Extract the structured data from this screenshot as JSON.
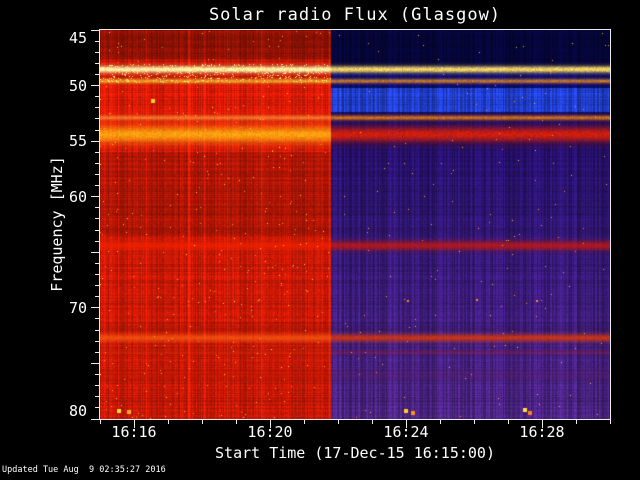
{
  "figure": {
    "background": "#000000",
    "footer_text": "Updated Tue Aug  9 02:35:27 2016"
  },
  "chart_data": {
    "type": "heatmap",
    "subtype": "radio-spectrogram",
    "title": "Solar radio Flux (Glasgow)",
    "xlabel": "Start Time (17-Dec-15 16:15:00)",
    "ylabel": "Frequency [MHz]",
    "x_start_time": "16:15:00",
    "x_span_minutes": 15,
    "x_minor_step_minutes": 1,
    "x_major_ticks": [
      {
        "minute": 1,
        "label": "16:16"
      },
      {
        "minute": 5,
        "label": "16:20"
      },
      {
        "minute": 9,
        "label": "16:24"
      },
      {
        "minute": 13,
        "label": "16:28"
      }
    ],
    "y_range_mhz": [
      45,
      80
    ],
    "y_inverted_low_at_top": true,
    "y_minor_step_mhz": 1,
    "y_major_ticks": [
      45,
      50,
      55,
      60,
      65,
      70,
      75,
      80
    ],
    "y_labeled_ticks": [
      45,
      50,
      55,
      60,
      70,
      80
    ],
    "transition_minute": 6.8,
    "left_region": {
      "base_color": "#d21a06",
      "top_dark_below_mhz": 47.6,
      "top_dark_factor": 0.72,
      "dim_from_mhz": 56.0,
      "dim_to_mhz": 63.5,
      "dim_factor": 0.88,
      "bright_from_mhz": 49.9,
      "bright_to_mhz": 56.0,
      "bright_factor": 1.1
    },
    "right_region": {
      "segments": [
        {
          "to_mhz": 48.2,
          "color": "#06063e"
        },
        {
          "to_mhz": 50.2,
          "color": "#0c0c72"
        },
        {
          "to_mhz": 52.4,
          "color": "#2343dc"
        },
        {
          "to_mhz": 55.4,
          "color": "#150b66"
        },
        {
          "to_mhz": 80,
          "color_top": "#271172",
          "color_bottom": "#53278e"
        }
      ]
    },
    "bands": [
      {
        "freq_mhz": 48.55,
        "sigma_mhz": 0.22,
        "peak": 1.0,
        "color_left": "#ffffb4",
        "color_right": "#ffe060"
      },
      {
        "freq_mhz": 49.6,
        "sigma_mhz": 0.15,
        "peak": 0.75,
        "color_left": "#ffcc30",
        "color_right": "#ff9820"
      },
      {
        "freq_mhz": 52.9,
        "sigma_mhz": 0.16,
        "peak": 0.8,
        "color_left": "#ff8a30",
        "color_right": "#ff8810"
      },
      {
        "freq_mhz": 54.4,
        "sigma_mhz": 0.5,
        "peak": 0.95,
        "color_left": "#ffac10",
        "color_right": "#e02008"
      },
      {
        "freq_mhz": 64.4,
        "sigma_mhz": 0.3,
        "peak": 0.8,
        "color_left": "#f02000",
        "color_right": "#cc1808"
      },
      {
        "freq_mhz": 72.7,
        "sigma_mhz": 0.25,
        "peak": 0.85,
        "color_left": "#f65410",
        "color_right": "#dd3808"
      },
      {
        "freq_mhz": 74.0,
        "sigma_mhz": 0.15,
        "peak": 0.45,
        "color_left": "#c82400",
        "color_right": "#8c1a40"
      },
      {
        "freq_mhz": 76.0,
        "sigma_mhz": 0.3,
        "peak": 0.35,
        "color_left": "#b81400",
        "color_right": "#581a60"
      }
    ],
    "spots": [
      {
        "t_minute": 1.55,
        "freq_mhz": 51.4,
        "r": 2,
        "color": "#ffd020"
      },
      {
        "t_minute": 0.55,
        "freq_mhz": 79.3,
        "r": 2,
        "color": "#ffe030"
      },
      {
        "t_minute": 0.85,
        "freq_mhz": 79.4,
        "r": 2,
        "color": "#ffb020"
      },
      {
        "t_minute": 9.0,
        "freq_mhz": 79.3,
        "r": 2,
        "color": "#ffd020"
      },
      {
        "t_minute": 9.2,
        "freq_mhz": 79.5,
        "r": 2,
        "color": "#ff9020"
      },
      {
        "t_minute": 12.5,
        "freq_mhz": 79.2,
        "r": 2,
        "color": "#ffe040"
      },
      {
        "t_minute": 12.65,
        "freq_mhz": 79.45,
        "r": 2,
        "color": "#ff8020"
      },
      {
        "t_minute": 9.05,
        "freq_mhz": 69.4,
        "r": 1,
        "color": "#ff8c20"
      },
      {
        "t_minute": 11.1,
        "freq_mhz": 69.3,
        "r": 1,
        "color": "#ff8c20"
      },
      {
        "t_minute": 12.85,
        "freq_mhz": 69.4,
        "r": 1,
        "color": "#ff8c20"
      }
    ]
  }
}
